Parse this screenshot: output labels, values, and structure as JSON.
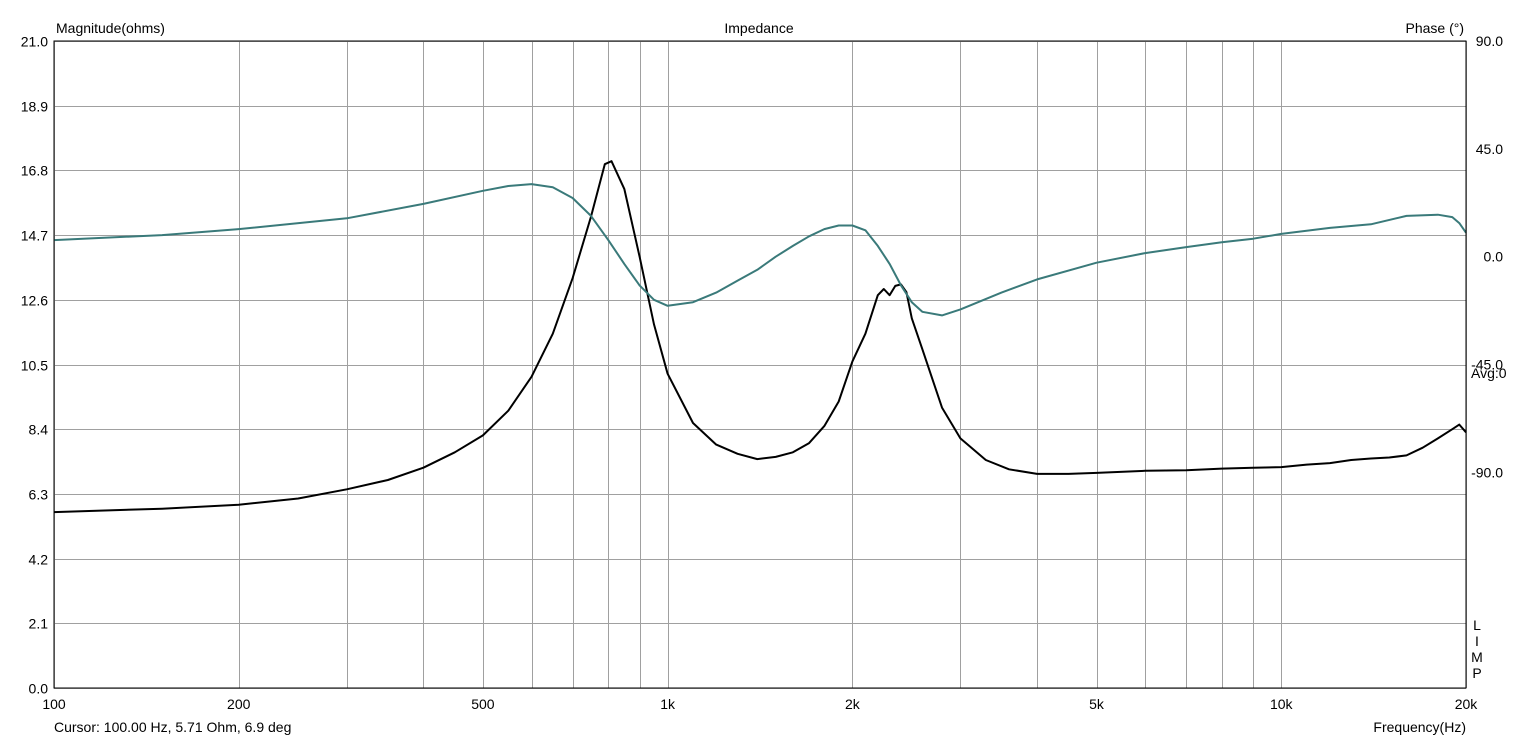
{
  "chart_data": {
    "type": "line",
    "title": "Impedance",
    "ylabel_left": "Magnitude(ohms)",
    "ylabel_right": "Phase (°)",
    "xlabel": "Frequency(Hz)",
    "x_scale": "log",
    "xlim": [
      100,
      20000
    ],
    "ylim_left": [
      0,
      21
    ],
    "ylim_right": [
      -180,
      90
    ],
    "grid": true,
    "x_ticks": [
      {
        "value": 100,
        "label": "100"
      },
      {
        "value": 200,
        "label": "200"
      },
      {
        "value": 500,
        "label": "500"
      },
      {
        "value": 1000,
        "label": "1k"
      },
      {
        "value": 2000,
        "label": "2k"
      },
      {
        "value": 5000,
        "label": "5k"
      },
      {
        "value": 10000,
        "label": "10k"
      },
      {
        "value": 20000,
        "label": "20k"
      }
    ],
    "x_minor_grid": [
      300,
      400,
      600,
      700,
      800,
      900,
      3000,
      4000,
      6000,
      7000,
      8000,
      9000
    ],
    "y_left_ticks": [
      "0.0",
      "2.1",
      "4.2",
      "6.3",
      "8.4",
      "10.5",
      "12.6",
      "14.7",
      "16.8",
      "18.9",
      "21.0"
    ],
    "y_right_ticks": [
      {
        "value": 90,
        "label": "90.0"
      },
      {
        "value": 45,
        "label": "45.0"
      },
      {
        "value": 0,
        "label": "0.0"
      },
      {
        "value": -45,
        "label": "-45.0"
      },
      {
        "value": -90,
        "label": "-90.0"
      }
    ],
    "avg_label": "Avg:0",
    "side_letters": [
      "L",
      "I",
      "M",
      "P"
    ],
    "cursor_text": "Cursor: 100.00 Hz, 5.71 Ohm, 6.9 deg",
    "series": [
      {
        "key": "magnitude",
        "axis": "left",
        "color": "#000000",
        "points": [
          [
            100,
            5.71
          ],
          [
            150,
            5.82
          ],
          [
            200,
            5.95
          ],
          [
            250,
            6.15
          ],
          [
            300,
            6.45
          ],
          [
            350,
            6.75
          ],
          [
            400,
            7.15
          ],
          [
            450,
            7.65
          ],
          [
            500,
            8.2
          ],
          [
            550,
            9.0
          ],
          [
            600,
            10.1
          ],
          [
            650,
            11.5
          ],
          [
            700,
            13.3
          ],
          [
            750,
            15.3
          ],
          [
            790,
            17.0
          ],
          [
            810,
            17.1
          ],
          [
            850,
            16.2
          ],
          [
            900,
            14.0
          ],
          [
            950,
            11.8
          ],
          [
            1000,
            10.2
          ],
          [
            1100,
            8.6
          ],
          [
            1200,
            7.9
          ],
          [
            1300,
            7.6
          ],
          [
            1400,
            7.43
          ],
          [
            1500,
            7.5
          ],
          [
            1600,
            7.65
          ],
          [
            1700,
            7.95
          ],
          [
            1800,
            8.5
          ],
          [
            1900,
            9.3
          ],
          [
            2000,
            10.6
          ],
          [
            2100,
            11.5
          ],
          [
            2200,
            12.75
          ],
          [
            2250,
            12.95
          ],
          [
            2300,
            12.75
          ],
          [
            2350,
            13.05
          ],
          [
            2400,
            13.1
          ],
          [
            2450,
            12.85
          ],
          [
            2500,
            12.0
          ],
          [
            2600,
            11.0
          ],
          [
            2800,
            9.1
          ],
          [
            3000,
            8.1
          ],
          [
            3300,
            7.4
          ],
          [
            3600,
            7.1
          ],
          [
            4000,
            6.95
          ],
          [
            4500,
            6.95
          ],
          [
            5000,
            6.98
          ],
          [
            6000,
            7.05
          ],
          [
            7000,
            7.07
          ],
          [
            8000,
            7.12
          ],
          [
            9000,
            7.15
          ],
          [
            10000,
            7.17
          ],
          [
            11000,
            7.25
          ],
          [
            12000,
            7.3
          ],
          [
            13000,
            7.4
          ],
          [
            14000,
            7.45
          ],
          [
            15000,
            7.48
          ],
          [
            16000,
            7.55
          ],
          [
            17000,
            7.8
          ],
          [
            18000,
            8.1
          ],
          [
            19000,
            8.4
          ],
          [
            19500,
            8.55
          ],
          [
            20000,
            8.3
          ]
        ]
      },
      {
        "key": "phase",
        "axis": "right",
        "color": "#3a7a7a",
        "points": [
          [
            100,
            6.9
          ],
          [
            150,
            9.0
          ],
          [
            200,
            11.5
          ],
          [
            300,
            16.0
          ],
          [
            400,
            22.0
          ],
          [
            500,
            27.5
          ],
          [
            550,
            29.5
          ],
          [
            600,
            30.3
          ],
          [
            650,
            29.0
          ],
          [
            700,
            24.5
          ],
          [
            750,
            17.0
          ],
          [
            800,
            7.0
          ],
          [
            850,
            -3.0
          ],
          [
            900,
            -12.0
          ],
          [
            950,
            -18.0
          ],
          [
            1000,
            -20.5
          ],
          [
            1100,
            -19.0
          ],
          [
            1200,
            -15.0
          ],
          [
            1300,
            -10.0
          ],
          [
            1400,
            -5.5
          ],
          [
            1500,
            0.0
          ],
          [
            1600,
            4.5
          ],
          [
            1700,
            8.5
          ],
          [
            1800,
            11.5
          ],
          [
            1900,
            13.0
          ],
          [
            2000,
            13.0
          ],
          [
            2100,
            11.0
          ],
          [
            2200,
            4.5
          ],
          [
            2300,
            -3.0
          ],
          [
            2400,
            -12.0
          ],
          [
            2500,
            -19.0
          ],
          [
            2600,
            -23.0
          ],
          [
            2800,
            -24.5
          ],
          [
            3000,
            -22.0
          ],
          [
            3500,
            -15.0
          ],
          [
            4000,
            -9.5
          ],
          [
            5000,
            -2.5
          ],
          [
            6000,
            1.5
          ],
          [
            7000,
            4.0
          ],
          [
            8000,
            6.0
          ],
          [
            9000,
            7.5
          ],
          [
            10000,
            9.5
          ],
          [
            12000,
            12.0
          ],
          [
            14000,
            13.5
          ],
          [
            16000,
            17.0
          ],
          [
            18000,
            17.5
          ],
          [
            19000,
            16.5
          ],
          [
            19500,
            14.0
          ],
          [
            20000,
            10.0
          ]
        ]
      }
    ]
  }
}
